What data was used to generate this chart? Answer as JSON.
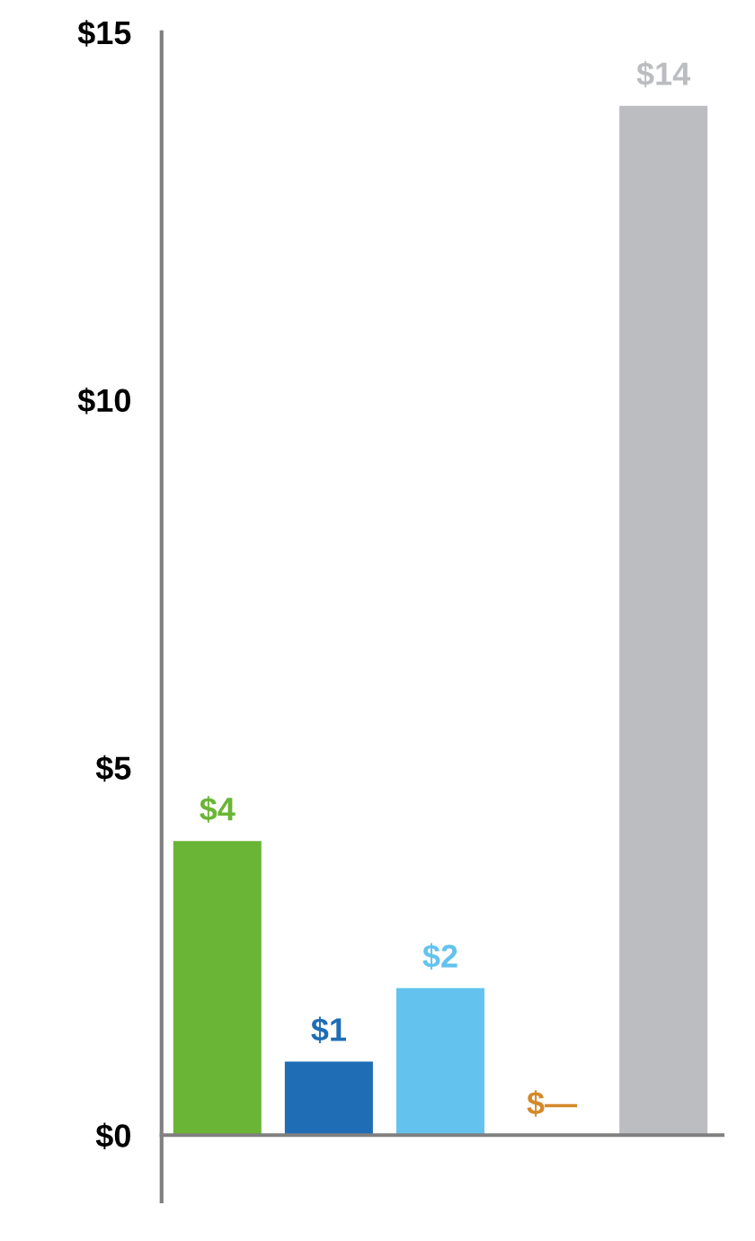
{
  "chart_data": {
    "type": "bar",
    "categories": [
      null,
      null,
      null,
      null,
      null
    ],
    "values": [
      4,
      1,
      2,
      0,
      14
    ],
    "colors": [
      "#6ab535",
      "#1f6db5",
      "#63c3ee",
      "#d4892a",
      "#bcbdc0"
    ],
    "value_labels": [
      "$4",
      "$1",
      "$2",
      "$—",
      "$14"
    ],
    "ylim": [
      -0.9,
      15
    ],
    "yticks": [
      {
        "value": 0,
        "label": "$0"
      },
      {
        "value": 5,
        "label": "$5"
      },
      {
        "value": 10,
        "label": "$10"
      },
      {
        "value": 15,
        "label": "$15"
      }
    ],
    "legend": false
  }
}
